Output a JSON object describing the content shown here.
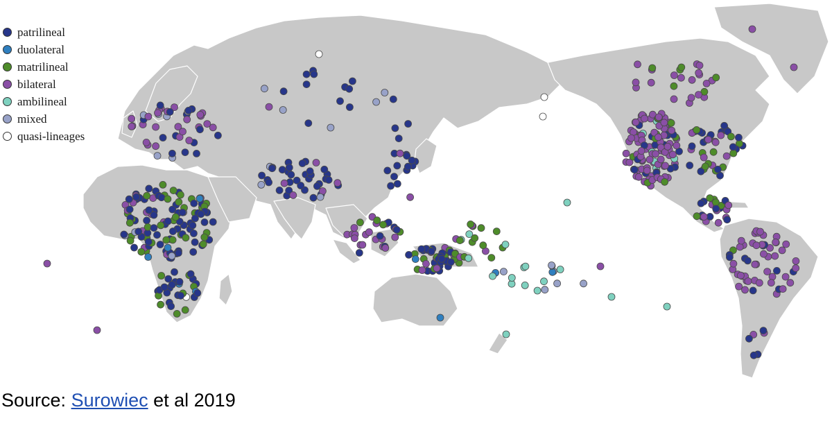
{
  "legend": {
    "items": [
      {
        "key": "patrilineal",
        "label": "patrilineal",
        "color": "#27368a"
      },
      {
        "key": "duolateral",
        "label": "duolateral",
        "color": "#2f7fbf"
      },
      {
        "key": "matrilineal",
        "label": "matrilineal",
        "color": "#4e8c2a"
      },
      {
        "key": "bilateral",
        "label": "bilateral",
        "color": "#8a4fa6"
      },
      {
        "key": "ambilineal",
        "label": "ambilineal",
        "color": "#7fd1bf"
      },
      {
        "key": "mixed",
        "label": "mixed",
        "color": "#98a2c8"
      },
      {
        "key": "quasi",
        "label": "quasi-lineages",
        "color": "#ffffff"
      }
    ]
  },
  "colors": {
    "land": "#c8c8c8",
    "borders": "#ffffff",
    "marker_outline": "#4a4a4a"
  },
  "source": {
    "prefix": "Source: ",
    "link_text": "Surowiec",
    "suffix": " et al 2019"
  }
}
